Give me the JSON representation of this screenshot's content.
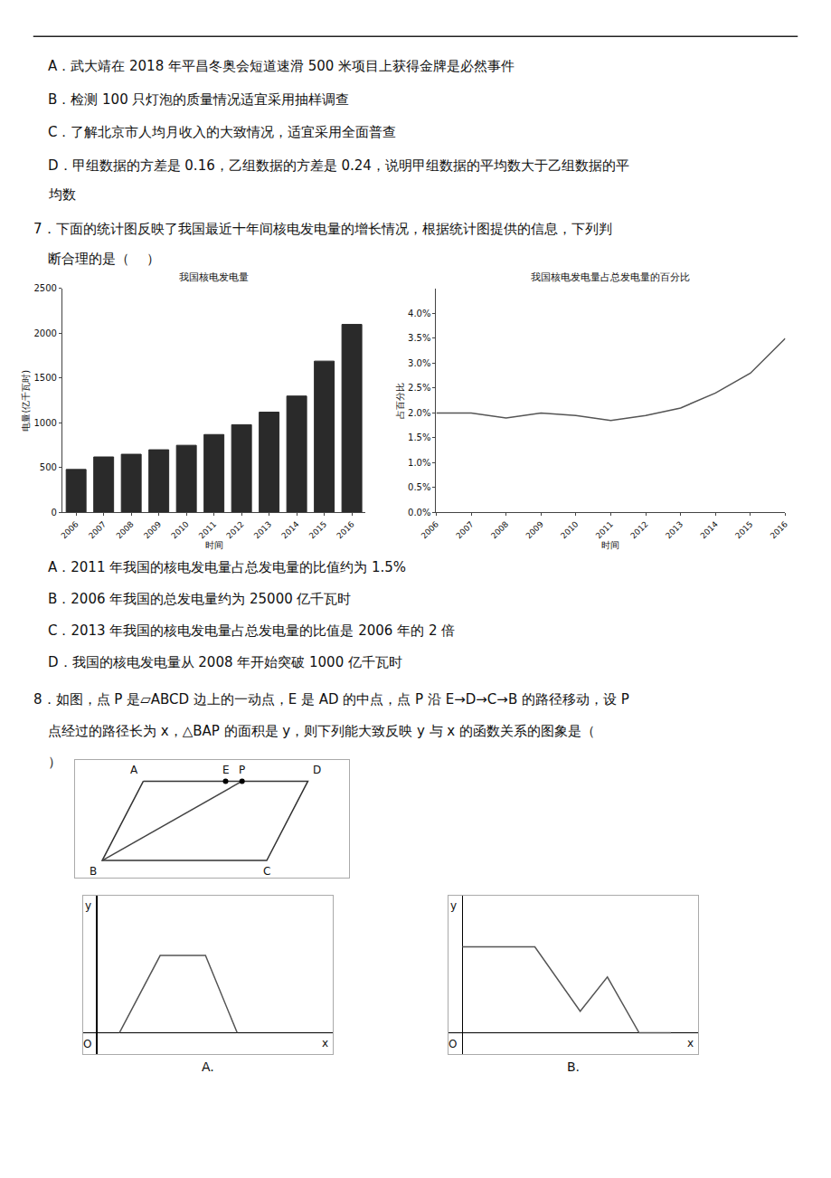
{
  "annotations": [
    "A．武大靖在 2018 年平昌冬奥会短道速滑 500 米项目上获得金牌是必然事件",
    "B．检测 100 只灯泡的质量情况适宜采用抽样调查",
    "C．了解北京市人均月收入的大致情况，适宜采用全面普查",
    "D．甲组数据的方差是 0.16，乙组数据的方差是 0.24，说明甲组数据的平均数大于乙组数据的平",
    "均数",
    "7．下面的统计图反映了我国最近十年间核电发电量的增长情况，根据统计图提供的信息，下列判",
    "断合理的是（    ）",
    "A．2011 年我国的核电发电量占总发电量的比值约为 1.5%",
    "B．2006 年我国的总发电量约为 25000 亿千瓦时",
    "C．2013 年我国的核电发电量占总发电量的比值是 2006 年的 2 倍",
    "D．我国的核电发电量从 2008 年开始突破 1000 亿千瓦时",
    "8．如图，点 P 是▱ABCD 边上的一动点，E 是 AD 的中点，点 P 沿 E→D→C→B 的路径移动，设 P",
    "点经过的路径长为 x，△BAP 的面积是 y，则下列能大致反映 y 与 x 的函数关系的图象是（",
    "）"
  ],
  "chart_data": [
    {
      "type": "bar",
      "title": "我国核电发电量",
      "categories": [
        "2006",
        "2007",
        "2008",
        "2009",
        "2010",
        "2011",
        "2012",
        "2013",
        "2014",
        "2015",
        "2016"
      ],
      "values": [
        480,
        620,
        650,
        700,
        750,
        870,
        980,
        1120,
        1300,
        1690,
        2100
      ],
      "color": "#2a2a2a",
      "xlabel": "时间",
      "ylabel": "电量(亿千瓦时)",
      "ylim": [
        0,
        2500
      ],
      "yticks": [
        0,
        500,
        1000,
        1500,
        2000,
        2500
      ],
      "grid": false
    },
    {
      "type": "line",
      "title": "我国核电发电量占总发电量的百分比",
      "categories": [
        "2006",
        "2007",
        "2008",
        "2009",
        "2010",
        "2011",
        "2012",
        "2013",
        "2014",
        "2015",
        "2016"
      ],
      "values": [
        2.0,
        2.0,
        1.9,
        2.0,
        1.95,
        1.85,
        1.95,
        2.1,
        2.4,
        2.8,
        3.5
      ],
      "color": "#555555",
      "xlabel": "时间",
      "ylabel": "占百分比",
      "ylim": [
        0,
        4.5
      ],
      "yticks": [
        {
          "value": 0,
          "label": "0.0%"
        },
        {
          "value": 0.5,
          "label": "0.5%"
        },
        {
          "value": 1.0,
          "label": "1.0%"
        },
        {
          "value": 1.5,
          "label": "1.5%"
        },
        {
          "value": 2.0,
          "label": "2.0%"
        },
        {
          "value": 2.5,
          "label": "2.5%"
        },
        {
          "value": 3.0,
          "label": "3.0%"
        },
        {
          "value": 3.5,
          "label": "3.5%"
        },
        {
          "value": 4.0,
          "label": "4.0%"
        }
      ],
      "grid": false
    },
    {
      "type": "line",
      "tick_labels": false,
      "grid": false,
      "xlim": [
        0,
        10
      ],
      "ylim": [
        0,
        5.5
      ],
      "series": [
        {
          "color": "#333333",
          "x": [
            2.5,
            8.5,
            7.0,
            1.0,
            2.5
          ],
          "values": [
            4.5,
            4.5,
            0.8,
            0.8,
            4.5
          ]
        },
        {
          "color": "#444444",
          "x": [
            1.0,
            6.1
          ],
          "values": [
            0.8,
            4.5
          ]
        },
        {
          "type": "scatter",
          "color": "#000000",
          "x": [
            5.5,
            6.1
          ],
          "values": [
            4.5,
            4.5
          ]
        }
      ],
      "annotations": [
        {
          "text": "A",
          "x": 2.5,
          "y": 4.5
        },
        {
          "text": "E",
          "x": 5.5,
          "y": 4.5
        },
        {
          "text": "P",
          "x": 6.1,
          "y": 4.5
        },
        {
          "text": "D",
          "x": 8.5,
          "y": 4.5
        },
        {
          "text": "B",
          "x": 1.0,
          "y": 0.8
        },
        {
          "text": "C",
          "x": 7.0,
          "y": 0.8
        }
      ]
    },
    {
      "type": "line",
      "title": "A.",
      "tick_labels": false,
      "grid": false,
      "xlabel": "x",
      "ylabel": "y",
      "xlim": [
        -0.3,
        5.2
      ],
      "ylim": [
        -0.5,
        3.2
      ],
      "x": [
        0.5,
        1.4,
        2.4,
        3.1
      ],
      "values": [
        0.0,
        1.8,
        1.8,
        0.0
      ],
      "color": "#555555",
      "annotations": [
        {
          "text": "O",
          "x": 0,
          "y": 0
        }
      ]
    },
    {
      "type": "line",
      "title": "B.",
      "tick_labels": false,
      "grid": false,
      "xlabel": "x",
      "ylabel": "y",
      "xlim": [
        -0.3,
        5.2
      ],
      "ylim": [
        -0.5,
        3.2
      ],
      "x": [
        0.0,
        1.6,
        2.6,
        3.2,
        3.9,
        4.6
      ],
      "values": [
        2.0,
        2.0,
        0.5,
        1.3,
        0.0,
        0.0
      ],
      "color": "#555555",
      "annotations": [
        {
          "text": "O",
          "x": 0,
          "y": 0
        }
      ]
    }
  ]
}
